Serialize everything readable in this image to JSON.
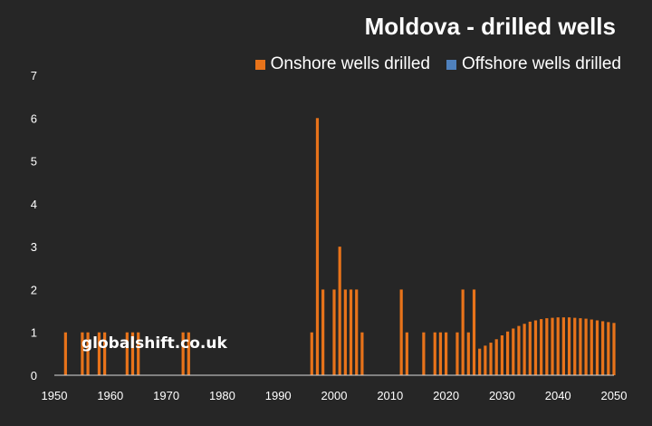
{
  "chart_data": {
    "type": "bar",
    "title": "Moldova - drilled wells",
    "xlabel": "",
    "ylabel": "",
    "xlim": [
      1950,
      2050
    ],
    "ylim": [
      0,
      7
    ],
    "yticks": [
      0,
      1,
      2,
      3,
      4,
      5,
      6,
      7
    ],
    "xticks": [
      1950,
      1960,
      1970,
      1980,
      1990,
      2000,
      2010,
      2020,
      2030,
      2040,
      2050
    ],
    "grid": false,
    "legend_position": "top-right",
    "series": [
      {
        "name": "Onshore wells drilled",
        "color": "#E8731A",
        "points": [
          [
            1952,
            1
          ],
          [
            1955,
            1
          ],
          [
            1956,
            1
          ],
          [
            1958,
            1
          ],
          [
            1959,
            1
          ],
          [
            1963,
            1
          ],
          [
            1964,
            1
          ],
          [
            1965,
            1
          ],
          [
            1973,
            1
          ],
          [
            1974,
            1
          ],
          [
            1996,
            1
          ],
          [
            1997,
            6
          ],
          [
            1998,
            2
          ],
          [
            2000,
            2
          ],
          [
            2001,
            3
          ],
          [
            2002,
            2
          ],
          [
            2003,
            2
          ],
          [
            2004,
            2
          ],
          [
            2005,
            1
          ],
          [
            2012,
            2
          ],
          [
            2013,
            1
          ],
          [
            2016,
            1
          ],
          [
            2018,
            1
          ],
          [
            2019,
            1
          ],
          [
            2020,
            1
          ],
          [
            2022,
            1
          ],
          [
            2023,
            2
          ],
          [
            2024,
            1
          ],
          [
            2025,
            2
          ],
          [
            2026,
            0.62
          ],
          [
            2027,
            0.69
          ],
          [
            2028,
            0.76
          ],
          [
            2029,
            0.84
          ],
          [
            2030,
            0.93
          ],
          [
            2031,
            1.02
          ],
          [
            2032,
            1.09
          ],
          [
            2033,
            1.15
          ],
          [
            2034,
            1.2
          ],
          [
            2035,
            1.25
          ],
          [
            2036,
            1.28
          ],
          [
            2037,
            1.31
          ],
          [
            2038,
            1.33
          ],
          [
            2039,
            1.34
          ],
          [
            2040,
            1.35
          ],
          [
            2041,
            1.35
          ],
          [
            2042,
            1.35
          ],
          [
            2043,
            1.34
          ],
          [
            2044,
            1.33
          ],
          [
            2045,
            1.32
          ],
          [
            2046,
            1.3
          ],
          [
            2047,
            1.28
          ],
          [
            2048,
            1.26
          ],
          [
            2049,
            1.24
          ],
          [
            2050,
            1.22
          ]
        ]
      },
      {
        "name": "Offshore wells drilled",
        "color": "#4F81BD",
        "points": []
      }
    ],
    "annotations": [
      "globalshift.co.uk"
    ]
  }
}
